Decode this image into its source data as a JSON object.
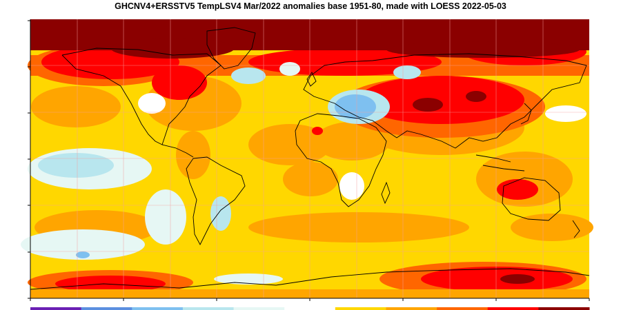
{
  "title": "GHCNV4+ERSSTV5 TempLSV4 Mar/2022 anomalies base 1951-80, made with LOESS 2022-05-03",
  "colors": {
    "background": "#ffffff",
    "gridline": "#f4a0a0",
    "coastline": "#000000",
    "axis": "#000000",
    "scale": [
      "#6a1fb4",
      "#5b8fe0",
      "#7ec0f0",
      "#b8e6ee",
      "#e6f7f4",
      "#ffffff",
      "#ffd700",
      "#ffa500",
      "#ff6600",
      "#ff0000",
      "#8b0000"
    ]
  },
  "regions": [
    {
      "name": "arctic",
      "color": "#8b0000"
    },
    {
      "name": "canada",
      "color": "#ff0000"
    },
    {
      "name": "north-atlantic-cool",
      "color": "#b8e6ee"
    },
    {
      "name": "eastern-europe-cool",
      "color": "#7ec0f0"
    },
    {
      "name": "siberia-warm",
      "color": "#ff0000"
    },
    {
      "name": "central-asia-core",
      "color": "#8b0000"
    },
    {
      "name": "southern-ocean-warm",
      "color": "#ff0000"
    },
    {
      "name": "antarctica-core",
      "color": "#8b0000"
    },
    {
      "name": "south-pacific-cool",
      "color": "#e6f7f4"
    },
    {
      "name": "equatorial-pacific-cool",
      "color": "#e6f7f4"
    }
  ]
}
